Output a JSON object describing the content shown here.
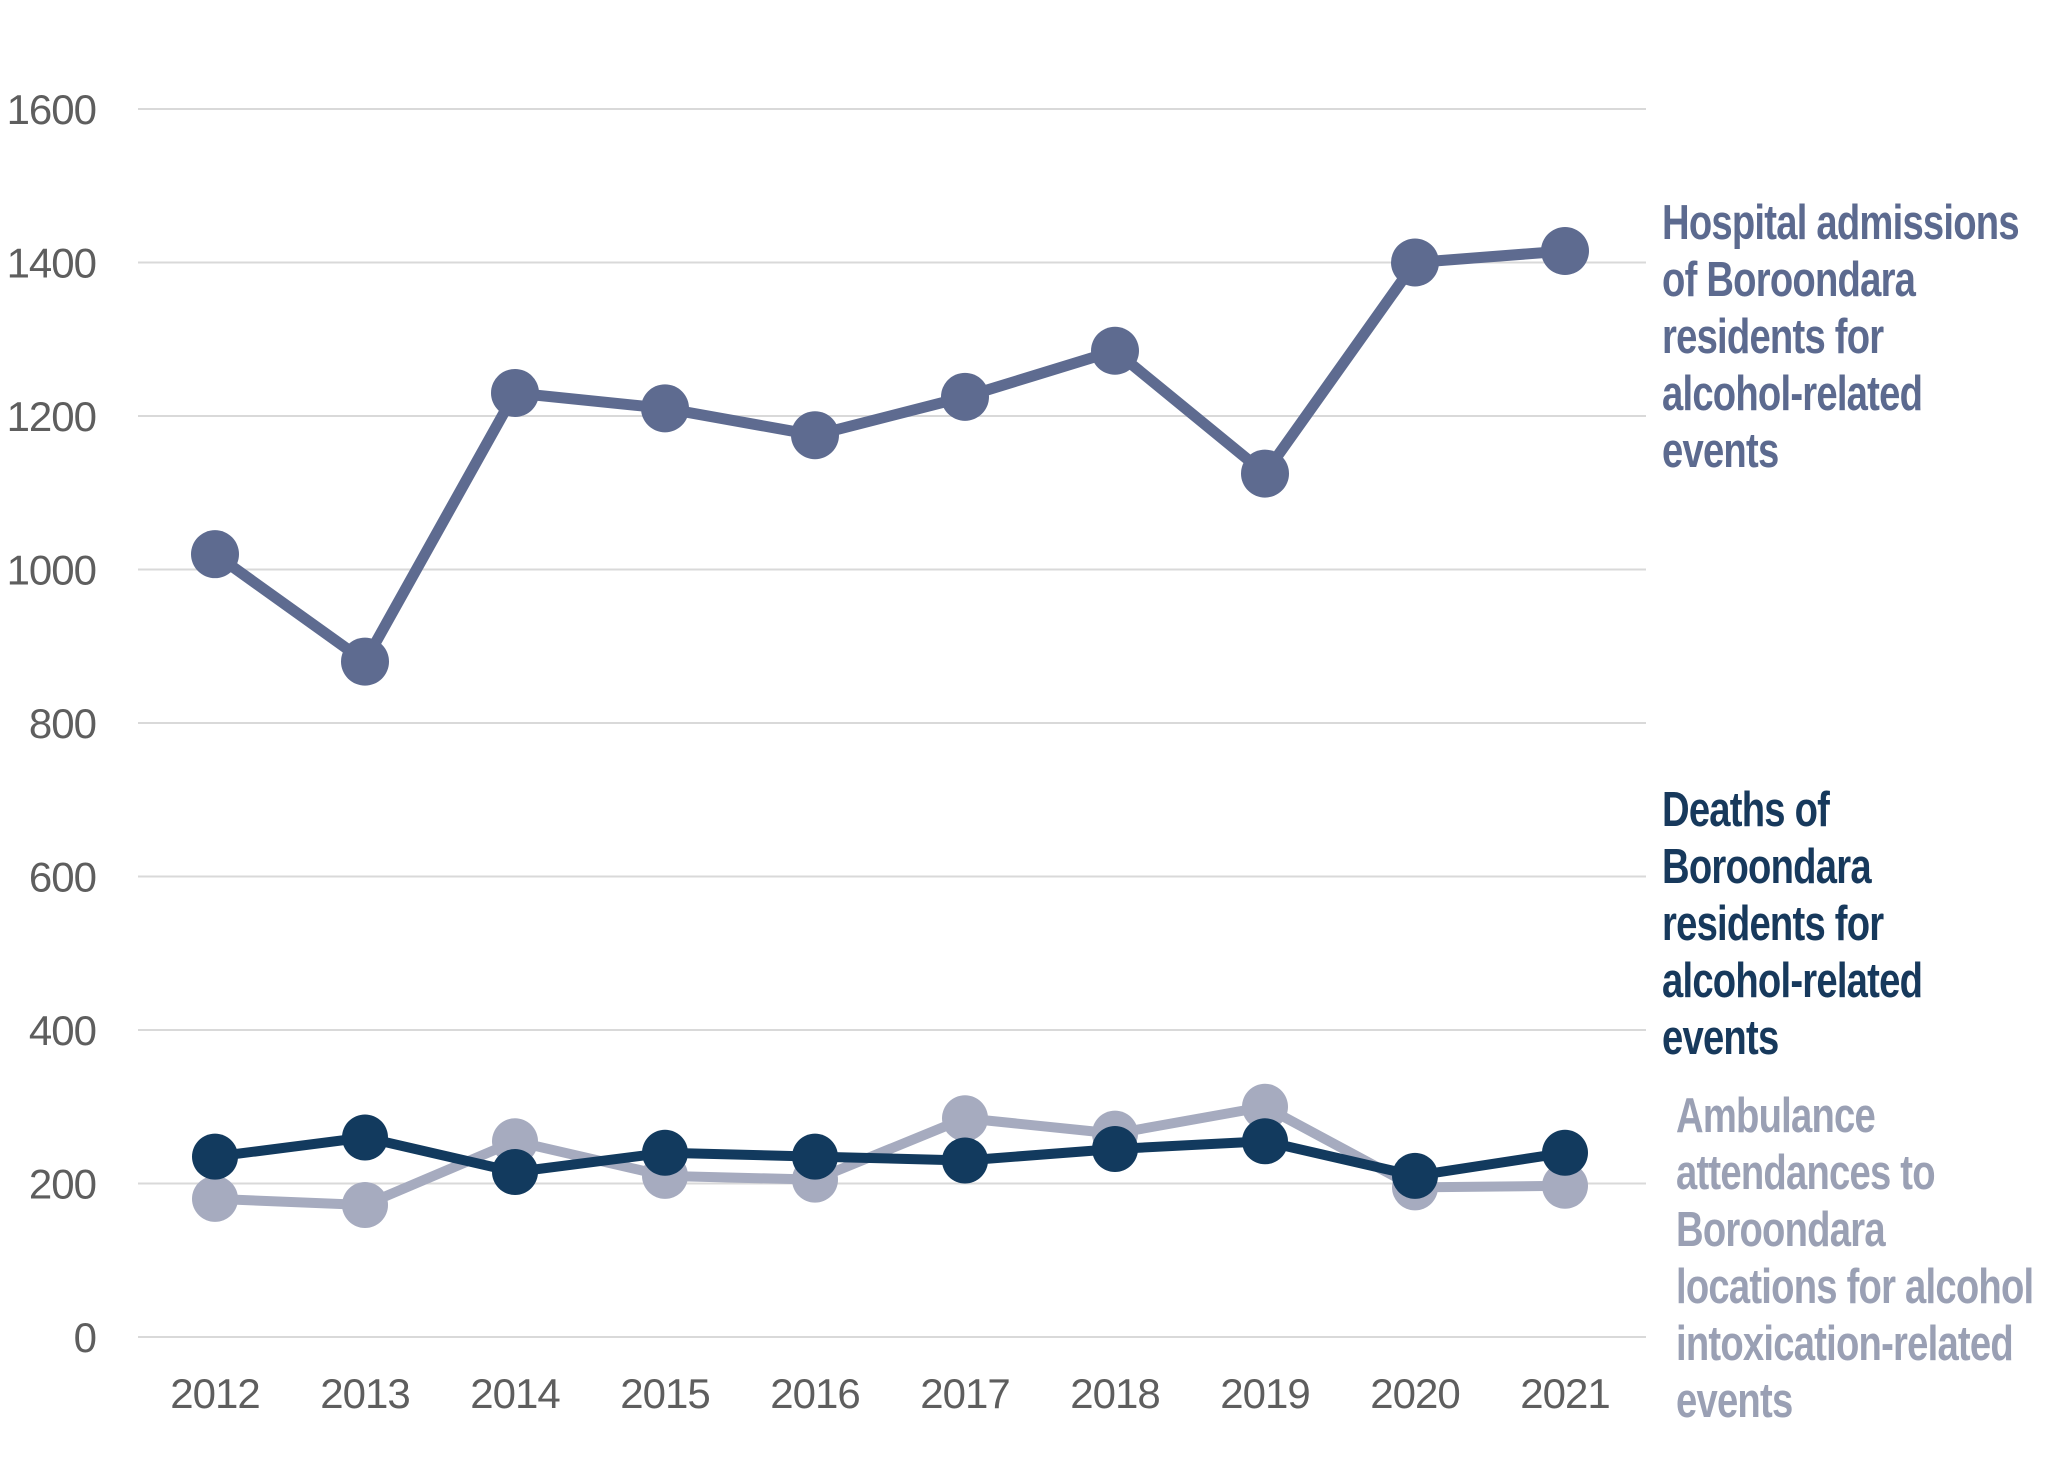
{
  "chart_data": {
    "type": "line",
    "categories": [
      "2012",
      "2013",
      "2014",
      "2015",
      "2016",
      "2017",
      "2018",
      "2019",
      "2020",
      "2021"
    ],
    "series": [
      {
        "id": "hospital",
        "name": "Hospital admissions of Boroondara residents for alcohol-related events",
        "color": "#5e6b90",
        "values": [
          1020,
          880,
          1230,
          1210,
          1175,
          1225,
          1285,
          1125,
          1400,
          1415
        ]
      },
      {
        "id": "deaths",
        "name": "Deaths of Boroondara residents for alcohol-related events",
        "color": "#123a5e",
        "values": [
          235,
          260,
          215,
          240,
          235,
          230,
          245,
          255,
          210,
          240
        ]
      },
      {
        "id": "ambulance",
        "name": "Ambulance attendances to Boroondara locations for alcohol intoxication-related events",
        "color": "#a6abbf",
        "values": [
          180,
          172,
          255,
          210,
          205,
          285,
          265,
          300,
          195,
          197
        ]
      }
    ],
    "ylim": [
      0,
      1600
    ],
    "yticks": [
      0,
      200,
      400,
      600,
      800,
      1000,
      1200,
      1400,
      1600
    ],
    "grid": true,
    "legend_position": "right"
  },
  "legends": [
    {
      "id": "hospital",
      "color": "#5c6a8f",
      "lines": [
        "Hospital admissions",
        "of Boroondara",
        "residents for",
        "alcohol-related",
        "events"
      ]
    },
    {
      "id": "deaths",
      "color": "#17395c",
      "lines": [
        "Deaths of",
        "Boroondara",
        "residents for",
        "alcohol-related",
        "events"
      ]
    },
    {
      "id": "ambulance",
      "color": "#9aa0b4",
      "lines": [
        "Ambulance",
        "attendances to",
        "Boroondara",
        "locations for alcohol",
        "intoxication-related",
        "events"
      ]
    }
  ],
  "axis": {
    "tick_color": "#5e5e5e",
    "grid_color": "#d9d9d9"
  }
}
